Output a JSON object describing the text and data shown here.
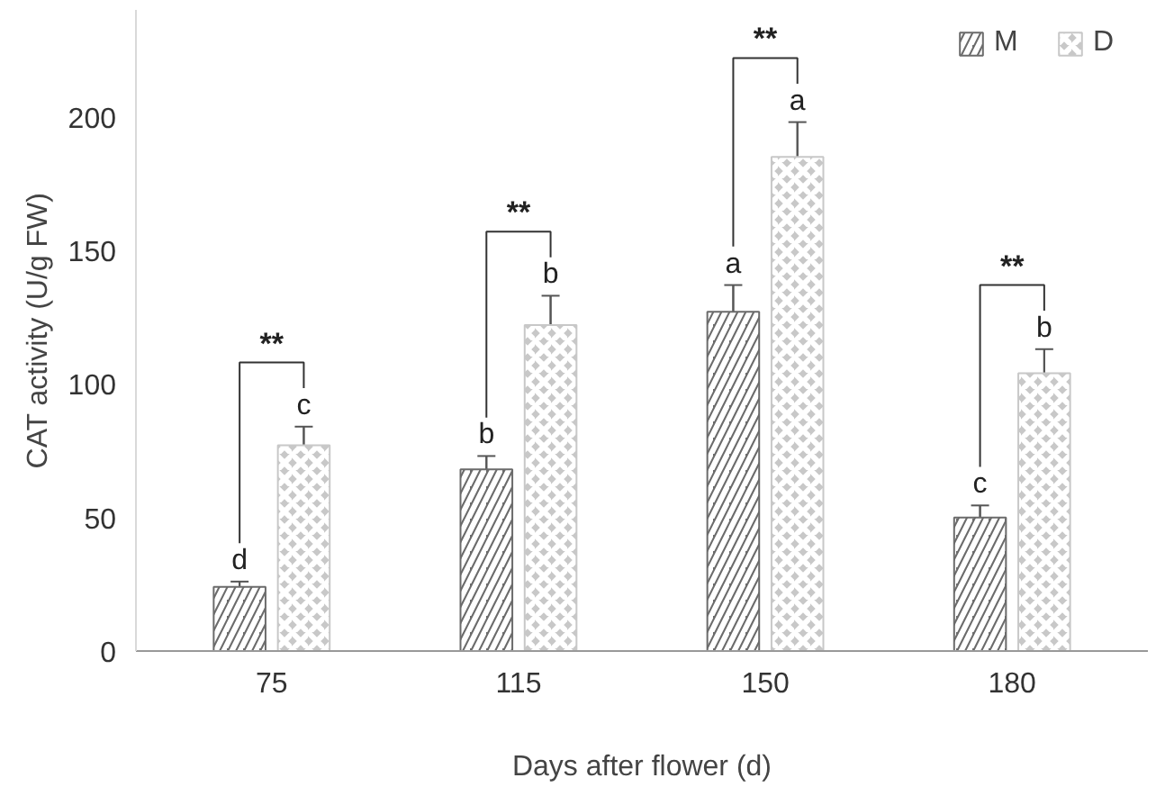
{
  "chart_data": {
    "type": "bar",
    "xlabel": "Days after flower (d)",
    "ylabel": "CAT activity (U/g FW)",
    "categories": [
      "75",
      "115",
      "150",
      "180"
    ],
    "series": [
      {
        "name": "M",
        "color": "#6b6b6b",
        "values": [
          24,
          68,
          127,
          50
        ],
        "errors": [
          2,
          5,
          10,
          4.5
        ],
        "value_labels": [
          "d",
          "b",
          "a",
          "c"
        ]
      },
      {
        "name": "D",
        "color": "#c8c8c8",
        "values": [
          77,
          122,
          185,
          104
        ],
        "errors": [
          7,
          11,
          13,
          9
        ],
        "value_labels": [
          "c",
          "b",
          "a",
          "b"
        ]
      }
    ],
    "ylim": [
      0,
      240
    ],
    "yticks": [
      0,
      50,
      100,
      150,
      200
    ],
    "grid": false,
    "legend": "top right",
    "annotations": [
      "**",
      "**",
      "**",
      "**"
    ]
  }
}
